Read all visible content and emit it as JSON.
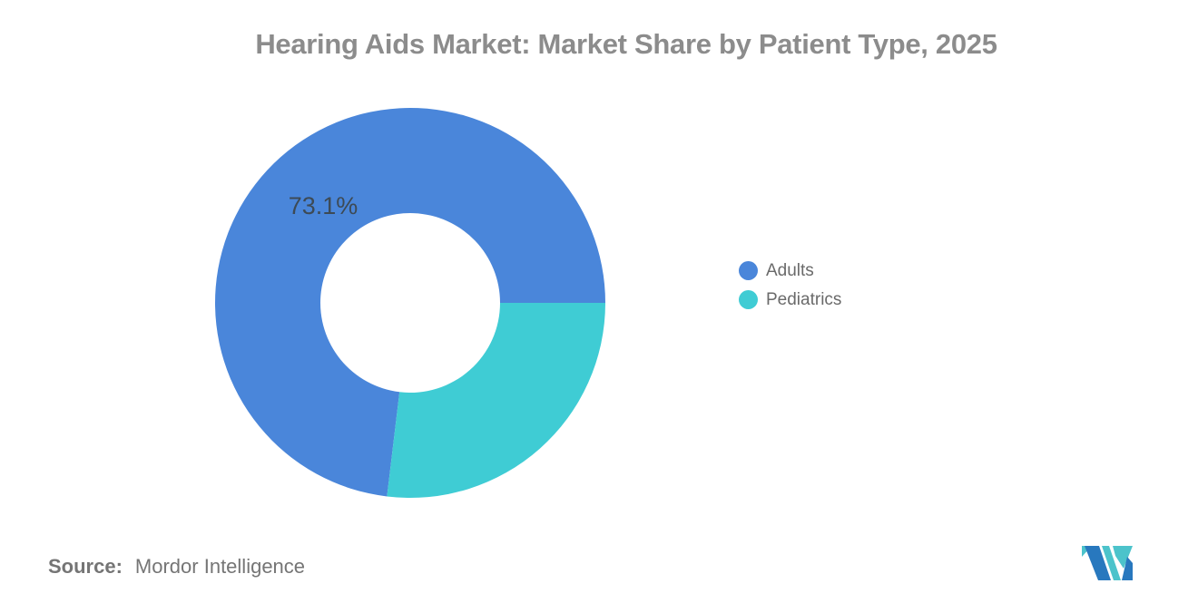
{
  "chart_data": {
    "type": "pie",
    "subtype": "donut",
    "title": "Hearing Aids Market: Market Share by Patient Type, 2025",
    "title_color": "#8c8c8c",
    "slices": [
      {
        "label": "Adults",
        "value": 73.1,
        "color": "#4a86da",
        "data_label": "73.1%"
      },
      {
        "label": "Pediatrics",
        "value": 26.9,
        "color": "#3fccd4",
        "data_label": ""
      }
    ],
    "units": "percent",
    "total": 100,
    "start_angle_deg": 186.84,
    "inner_radius_ratio": 0.46,
    "legend_position": "right-middle",
    "data_label_color": "#3d4a55",
    "legend_text_color": "#6a6a6a"
  },
  "source": {
    "label": "Source:",
    "value": "Mordor Intelligence",
    "color": "#757575"
  },
  "logo": {
    "name": "mordor-intelligence-logo",
    "blue": "#2878be",
    "teal": "#4cc3cb"
  }
}
